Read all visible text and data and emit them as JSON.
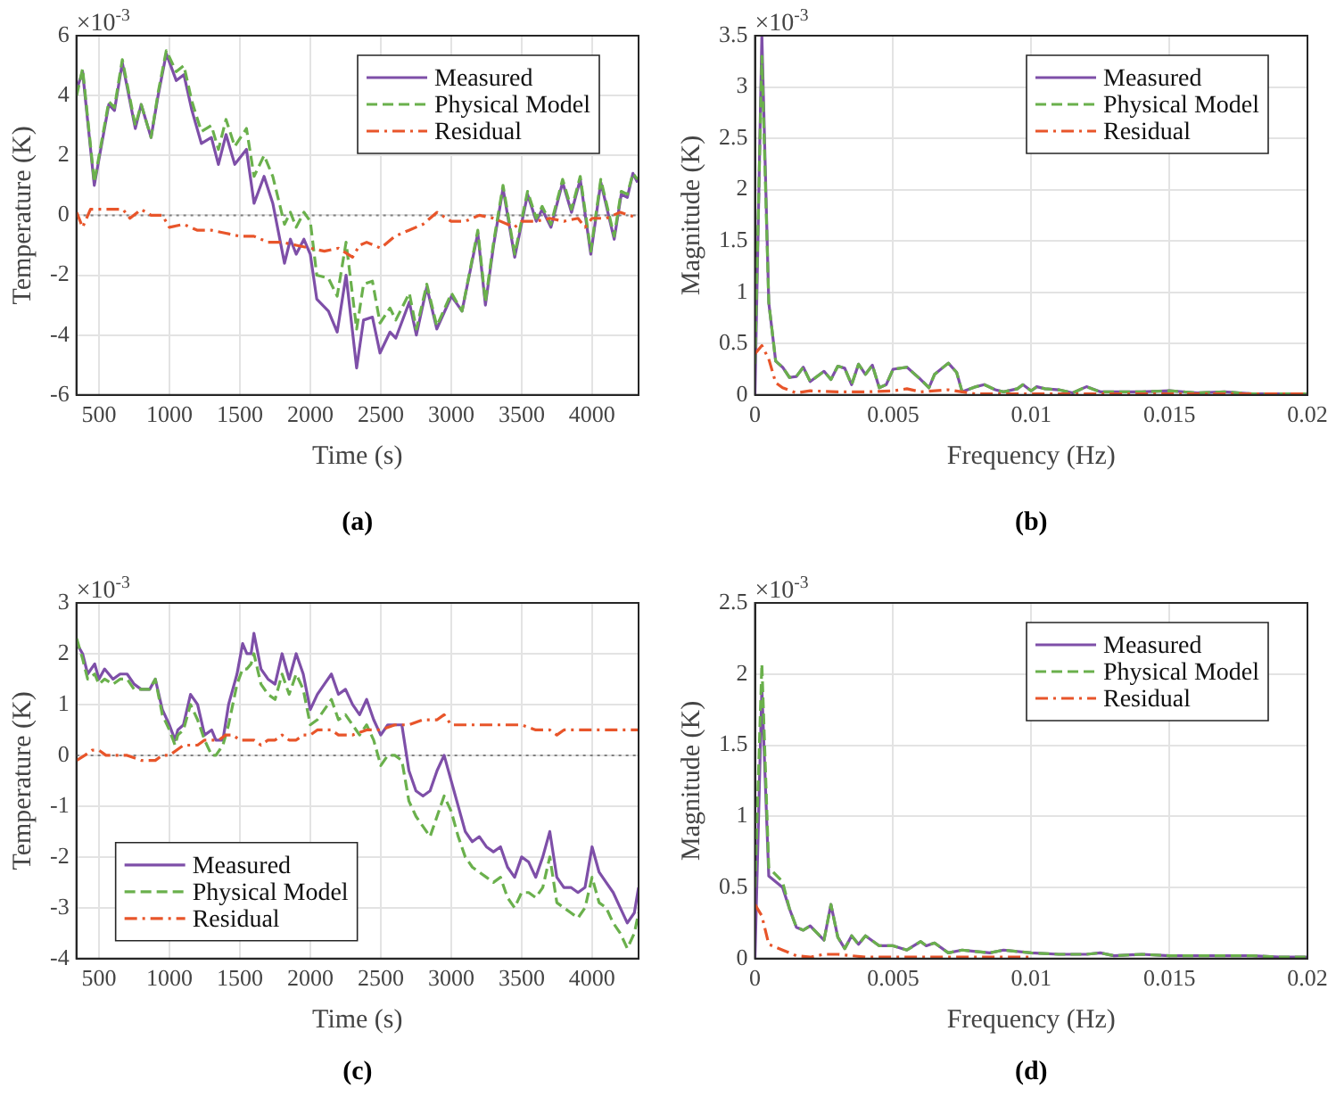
{
  "chart_data": [
    {
      "type": "line",
      "xlabel": "Time (s)",
      "ylabel": "Temperature (K)",
      "annotations": [
        "×10$^{-3}$",
        "(a)"
      ],
      "xlim": [
        340,
        4330
      ],
      "xticks": [
        500,
        1000,
        1500,
        2000,
        2500,
        3000,
        3500,
        4000
      ],
      "ylim": [
        -6,
        6
      ],
      "yticks": [
        -6,
        -4,
        -2,
        0,
        2,
        4,
        6
      ],
      "grid": true,
      "legend": "top right",
      "ref_lines": [
        {
          "axis": "y",
          "value": 0,
          "color": "#808080",
          "line_style": "dotted"
        }
      ],
      "series": [
        {
          "name": "Measured",
          "color": "#7e4fa8",
          "line_style": "solid",
          "x": [
            342,
            384,
            467,
            570,
            610,
            666,
            758,
            800,
            870,
            920,
            978,
            1049,
            1103,
            1160,
            1227,
            1298,
            1348,
            1402,
            1464,
            1547,
            1601,
            1672,
            1734,
            1817,
            1859,
            1900,
            1955,
            2000,
            2046,
            2129,
            2191,
            2254,
            2329,
            2378,
            2441,
            2495,
            2566,
            2607,
            2703,
            2753,
            2827,
            2898,
            3002,
            3077,
            3189,
            3243,
            3301,
            3368,
            3451,
            3542,
            3604,
            3646,
            3708,
            3791,
            3854,
            3916,
            3991,
            4062,
            4157,
            4207,
            4250,
            4290,
            4323
          ],
          "values": [
            4.2,
            4.8,
            1.0,
            3.7,
            3.5,
            5.1,
            2.9,
            3.7,
            2.6,
            4.0,
            5.4,
            4.5,
            4.7,
            3.5,
            2.4,
            2.6,
            1.7,
            2.7,
            1.7,
            2.2,
            0.4,
            1.3,
            0.4,
            -1.6,
            -0.8,
            -1.3,
            -0.8,
            -1.3,
            -2.8,
            -3.2,
            -3.9,
            -2.0,
            -5.1,
            -3.5,
            -3.4,
            -4.6,
            -3.9,
            -4.1,
            -2.9,
            -4.0,
            -2.4,
            -3.8,
            -2.7,
            -3.2,
            -0.6,
            -3.0,
            -1.0,
            0.9,
            -1.4,
            0.7,
            -0.2,
            0.2,
            -0.4,
            1.1,
            0.1,
            1.2,
            -1.3,
            1.1,
            -0.8,
            0.7,
            0.6,
            1.4,
            1.1
          ]
        },
        {
          "name": "Physical Model",
          "color": "#6ab04c",
          "line_style": "dashed",
          "x": [
            342,
            384,
            467,
            570,
            610,
            666,
            758,
            800,
            870,
            920,
            978,
            1049,
            1103,
            1160,
            1227,
            1298,
            1348,
            1402,
            1464,
            1547,
            1601,
            1672,
            1734,
            1817,
            1859,
            1900,
            1955,
            2000,
            2046,
            2129,
            2191,
            2254,
            2329,
            2378,
            2441,
            2495,
            2566,
            2607,
            2703,
            2753,
            2827,
            2898,
            3002,
            3077,
            3189,
            3243,
            3301,
            3368,
            3451,
            3542,
            3604,
            3646,
            3708,
            3791,
            3854,
            3916,
            3991,
            4062,
            4157,
            4207,
            4250,
            4290,
            4323
          ],
          "values": [
            4.0,
            4.9,
            1.1,
            3.8,
            3.6,
            5.2,
            3.0,
            3.7,
            2.6,
            4.1,
            5.5,
            4.8,
            5.0,
            3.8,
            2.8,
            3.0,
            2.2,
            3.2,
            2.3,
            2.9,
            1.3,
            2.0,
            1.3,
            -0.3,
            0.1,
            -0.4,
            0.1,
            -0.2,
            -2.0,
            -2.1,
            -2.7,
            -0.9,
            -3.8,
            -2.3,
            -2.2,
            -3.6,
            -3.1,
            -3.5,
            -2.6,
            -3.8,
            -2.3,
            -3.7,
            -2.6,
            -3.2,
            -0.5,
            -2.9,
            -0.9,
            1.0,
            -1.3,
            0.8,
            -0.1,
            0.3,
            -0.3,
            1.2,
            0.2,
            1.3,
            -1.2,
            1.2,
            -0.7,
            0.8,
            0.7,
            1.4,
            1.2
          ]
        },
        {
          "name": "Residual",
          "color": "#e8552a",
          "line_style": "dashdot",
          "x": [
            342,
            384,
            440,
            500,
            560,
            610,
            670,
            720,
            800,
            870,
            950,
            1000,
            1100,
            1200,
            1300,
            1400,
            1500,
            1600,
            1700,
            1800,
            1900,
            2000,
            2100,
            2200,
            2300,
            2350,
            2400,
            2500,
            2600,
            2700,
            2800,
            2900,
            3000,
            3100,
            3200,
            3300,
            3400,
            3450,
            3500,
            3600,
            3700,
            3800,
            3900,
            3950,
            4000,
            4100,
            4200,
            4330
          ],
          "values": [
            0.1,
            -0.4,
            0.2,
            0.2,
            0.2,
            0.2,
            0.2,
            -0.1,
            0.2,
            0.0,
            0.0,
            -0.4,
            -0.3,
            -0.5,
            -0.5,
            -0.6,
            -0.7,
            -0.7,
            -0.9,
            -0.9,
            -1.0,
            -1.1,
            -1.2,
            -1.1,
            -1.4,
            -1.0,
            -0.9,
            -1.1,
            -0.7,
            -0.5,
            -0.3,
            0.1,
            -0.2,
            -0.2,
            0.0,
            -0.1,
            -0.3,
            -0.4,
            -0.2,
            -0.2,
            -0.1,
            -0.2,
            -0.1,
            -0.4,
            -0.1,
            -0.1,
            0.1,
            -0.1
          ]
        }
      ]
    },
    {
      "type": "line",
      "xlabel": "Frequency (Hz)",
      "ylabel": "Magnitude (K)",
      "annotations": [
        "×10$^{-3}$",
        "(b)"
      ],
      "xlim": [
        0,
        0.02
      ],
      "xticks": [
        0,
        0.005,
        0.01,
        0.015,
        0.02
      ],
      "ylim": [
        0,
        3.5
      ],
      "yticks": [
        0,
        0.5,
        1,
        1.5,
        2,
        2.5,
        3,
        3.5
      ],
      "grid": true,
      "legend": "top right",
      "series": [
        {
          "name": "Measured",
          "color": "#7e4fa8",
          "line_style": "solid",
          "x": [
            0,
            0.00025,
            0.0005,
            0.00075,
            0.001,
            0.00125,
            0.0015,
            0.00175,
            0.002,
            0.0025,
            0.00275,
            0.003,
            0.00325,
            0.0035,
            0.00375,
            0.004,
            0.00425,
            0.0045,
            0.00475,
            0.005,
            0.0055,
            0.006,
            0.0063,
            0.0065,
            0.007,
            0.0073,
            0.0075,
            0.008,
            0.0083,
            0.0087,
            0.009,
            0.0095,
            0.0097,
            0.01,
            0.0102,
            0.0105,
            0.011,
            0.0115,
            0.012,
            0.0125,
            0.013,
            0.014,
            0.015,
            0.016,
            0.017,
            0.018,
            0.019,
            0.02
          ],
          "values": [
            0,
            3.5,
            0.9,
            0.33,
            0.27,
            0.17,
            0.18,
            0.27,
            0.13,
            0.23,
            0.15,
            0.28,
            0.26,
            0.1,
            0.3,
            0.2,
            0.29,
            0.07,
            0.1,
            0.25,
            0.27,
            0.15,
            0.07,
            0.2,
            0.31,
            0.22,
            0.03,
            0.08,
            0.1,
            0.05,
            0.03,
            0.06,
            0.1,
            0.04,
            0.08,
            0.06,
            0.05,
            0.02,
            0.08,
            0.03,
            0.03,
            0.03,
            0.04,
            0.02,
            0.03,
            0.01,
            0.01,
            0.01
          ]
        },
        {
          "name": "Physical Model",
          "color": "#6ab04c",
          "line_style": "dashed",
          "x": [
            0,
            0.00025,
            0.0005,
            0.00075,
            0.001,
            0.00125,
            0.0015,
            0.00175,
            0.002,
            0.0025,
            0.00275,
            0.003,
            0.00325,
            0.0035,
            0.00375,
            0.004,
            0.00425,
            0.0045,
            0.00475,
            0.005,
            0.0055,
            0.006,
            0.0063,
            0.0065,
            0.007,
            0.0073,
            0.0075,
            0.008,
            0.0083,
            0.0087,
            0.009,
            0.0095,
            0.0097,
            0.01,
            0.0102,
            0.0105,
            0.011,
            0.0115,
            0.012,
            0.0125,
            0.013,
            0.014,
            0.015,
            0.016,
            0.017,
            0.018,
            0.019,
            0.02
          ],
          "values": [
            0.3,
            3.3,
            0.9,
            0.33,
            0.27,
            0.17,
            0.18,
            0.27,
            0.13,
            0.23,
            0.15,
            0.28,
            0.26,
            0.1,
            0.3,
            0.2,
            0.29,
            0.07,
            0.1,
            0.25,
            0.27,
            0.15,
            0.07,
            0.2,
            0.31,
            0.22,
            0.03,
            0.08,
            0.1,
            0.05,
            0.03,
            0.06,
            0.1,
            0.04,
            0.08,
            0.06,
            0.05,
            0.02,
            0.08,
            0.03,
            0.03,
            0.03,
            0.04,
            0.02,
            0.03,
            0.01,
            0.01,
            0.01
          ]
        },
        {
          "name": "Residual",
          "color": "#e8552a",
          "line_style": "dashdot",
          "x": [
            0,
            0.00025,
            0.0005,
            0.00075,
            0.001,
            0.0015,
            0.002,
            0.003,
            0.004,
            0.005,
            0.0055,
            0.006,
            0.007,
            0.008,
            0.01,
            0.015,
            0.02
          ],
          "values": [
            0.4,
            0.48,
            0.35,
            0.12,
            0.07,
            0.02,
            0.04,
            0.03,
            0.03,
            0.04,
            0.06,
            0.03,
            0.05,
            0.01,
            0.01,
            0.01,
            0.01
          ]
        }
      ]
    },
    {
      "type": "line",
      "xlabel": "Time (s)",
      "ylabel": "Temperature (K)",
      "annotations": [
        "×10$^{-3}$",
        "(c)"
      ],
      "xlim": [
        340,
        4330
      ],
      "xticks": [
        500,
        1000,
        1500,
        2000,
        2500,
        3000,
        3500,
        4000
      ],
      "ylim": [
        -4,
        3
      ],
      "yticks": [
        -4,
        -3,
        -2,
        -1,
        0,
        1,
        2,
        3
      ],
      "grid": true,
      "legend": "bottom left",
      "ref_lines": [
        {
          "axis": "y",
          "value": 0,
          "color": "#808080",
          "line_style": "dotted"
        }
      ],
      "series": [
        {
          "name": "Measured",
          "color": "#7e4fa8",
          "line_style": "solid",
          "x": [
            342,
            384,
            420,
            470,
            500,
            540,
            600,
            650,
            700,
            750,
            800,
            860,
            900,
            950,
            1000,
            1040,
            1060,
            1100,
            1150,
            1200,
            1250,
            1300,
            1330,
            1380,
            1420,
            1480,
            1520,
            1550,
            1580,
            1600,
            1650,
            1700,
            1750,
            1800,
            1850,
            1900,
            1950,
            2000,
            2050,
            2100,
            2150,
            2200,
            2250,
            2300,
            2350,
            2400,
            2450,
            2500,
            2550,
            2600,
            2650,
            2700,
            2750,
            2800,
            2850,
            2900,
            2950,
            3000,
            3050,
            3100,
            3150,
            3200,
            3250,
            3300,
            3350,
            3400,
            3450,
            3500,
            3550,
            3600,
            3650,
            3700,
            3750,
            3800,
            3850,
            3900,
            3950,
            4000,
            4050,
            4100,
            4150,
            4200,
            4250,
            4300,
            4330
          ],
          "values": [
            2.2,
            2.0,
            1.6,
            1.8,
            1.5,
            1.7,
            1.5,
            1.6,
            1.6,
            1.4,
            1.3,
            1.3,
            1.5,
            0.9,
            0.6,
            0.3,
            0.5,
            0.6,
            1.2,
            1.0,
            0.4,
            0.5,
            0.3,
            0.3,
            1.0,
            1.6,
            2.2,
            2.0,
            2.0,
            2.4,
            1.7,
            1.5,
            1.4,
            2.0,
            1.5,
            2.0,
            1.6,
            0.9,
            1.2,
            1.4,
            1.6,
            1.2,
            1.3,
            1.0,
            0.8,
            1.1,
            0.7,
            0.4,
            0.6,
            0.6,
            0.6,
            -0.3,
            -0.7,
            -0.8,
            -0.7,
            -0.3,
            0.0,
            -0.5,
            -1.0,
            -1.5,
            -1.7,
            -1.6,
            -1.8,
            -1.9,
            -1.8,
            -2.2,
            -2.4,
            -2.0,
            -2.1,
            -2.4,
            -2.0,
            -1.5,
            -2.4,
            -2.6,
            -2.6,
            -2.7,
            -2.6,
            -1.8,
            -2.3,
            -2.5,
            -2.7,
            -3.0,
            -3.3,
            -3.1,
            -2.6
          ]
        },
        {
          "name": "Physical Model",
          "color": "#6ab04c",
          "line_style": "dashed",
          "x": [
            342,
            384,
            420,
            470,
            500,
            540,
            600,
            650,
            700,
            750,
            800,
            860,
            900,
            950,
            1000,
            1040,
            1060,
            1100,
            1150,
            1200,
            1250,
            1300,
            1330,
            1380,
            1420,
            1480,
            1520,
            1550,
            1580,
            1600,
            1650,
            1700,
            1750,
            1800,
            1850,
            1900,
            1950,
            2000,
            2050,
            2100,
            2150,
            2200,
            2250,
            2300,
            2350,
            2400,
            2450,
            2500,
            2550,
            2600,
            2650,
            2700,
            2750,
            2800,
            2850,
            2900,
            2950,
            3000,
            3050,
            3100,
            3150,
            3200,
            3250,
            3300,
            3350,
            3400,
            3450,
            3500,
            3550,
            3600,
            3650,
            3700,
            3750,
            3800,
            3850,
            3900,
            3950,
            4000,
            4050,
            4100,
            4150,
            4200,
            4250,
            4300,
            4330
          ],
          "values": [
            2.3,
            1.9,
            1.5,
            1.6,
            1.4,
            1.5,
            1.4,
            1.5,
            1.5,
            1.3,
            1.3,
            1.3,
            1.5,
            0.8,
            0.5,
            0.2,
            0.4,
            0.5,
            1.0,
            0.7,
            0.3,
            0.0,
            0.0,
            0.2,
            0.6,
            1.4,
            1.7,
            1.7,
            1.8,
            2.0,
            1.4,
            1.2,
            1.1,
            1.6,
            1.2,
            1.6,
            1.3,
            0.6,
            0.7,
            0.9,
            1.1,
            0.7,
            0.8,
            0.6,
            0.4,
            0.6,
            0.3,
            -0.2,
            0.0,
            0.0,
            -0.1,
            -0.9,
            -1.2,
            -1.4,
            -1.6,
            -1.2,
            -0.8,
            -1.1,
            -1.6,
            -2.0,
            -2.2,
            -2.3,
            -2.4,
            -2.5,
            -2.4,
            -2.8,
            -3.0,
            -2.7,
            -2.7,
            -2.8,
            -2.6,
            -2.0,
            -2.9,
            -3.0,
            -3.1,
            -3.2,
            -3.0,
            -2.4,
            -2.9,
            -3.0,
            -3.3,
            -3.5,
            -3.8,
            -3.5,
            -3.1
          ]
        },
        {
          "name": "Residual",
          "color": "#e8552a",
          "line_style": "dashdot",
          "x": [
            342,
            400,
            450,
            500,
            550,
            600,
            700,
            800,
            850,
            900,
            950,
            1000,
            1050,
            1100,
            1150,
            1200,
            1250,
            1300,
            1350,
            1400,
            1450,
            1500,
            1550,
            1600,
            1650,
            1700,
            1750,
            1800,
            1850,
            1900,
            1950,
            2000,
            2050,
            2100,
            2150,
            2200,
            2300,
            2400,
            2500,
            2600,
            2700,
            2800,
            2900,
            2950,
            3000,
            3100,
            3200,
            3300,
            3400,
            3500,
            3600,
            3700,
            3750,
            3800,
            3900,
            4000,
            4050,
            4100,
            4200,
            4330
          ],
          "values": [
            -0.1,
            0.0,
            0.1,
            0.1,
            0.0,
            0.0,
            0.0,
            -0.1,
            -0.1,
            -0.1,
            0.0,
            0.0,
            0.1,
            0.2,
            0.2,
            0.2,
            0.3,
            0.3,
            0.3,
            0.4,
            0.4,
            0.3,
            0.3,
            0.3,
            0.2,
            0.3,
            0.3,
            0.4,
            0.3,
            0.3,
            0.4,
            0.4,
            0.5,
            0.5,
            0.5,
            0.4,
            0.4,
            0.5,
            0.5,
            0.6,
            0.6,
            0.7,
            0.7,
            0.8,
            0.6,
            0.6,
            0.6,
            0.6,
            0.6,
            0.6,
            0.5,
            0.5,
            0.4,
            0.5,
            0.5,
            0.5,
            0.5,
            0.5,
            0.5,
            0.5
          ]
        }
      ]
    },
    {
      "type": "line",
      "xlabel": "Frequency (Hz)",
      "ylabel": "Magnitude (K)",
      "annotations": [
        "×10$^{-3}$",
        "(d)"
      ],
      "xlim": [
        0,
        0.02
      ],
      "xticks": [
        0,
        0.005,
        0.01,
        0.015,
        0.02
      ],
      "ylim": [
        0,
        2.5
      ],
      "yticks": [
        0,
        0.5,
        1,
        1.5,
        2,
        2.5
      ],
      "grid": true,
      "legend": "top right",
      "series": [
        {
          "name": "Measured",
          "color": "#7e4fa8",
          "line_style": "solid",
          "x": [
            0,
            0.00025,
            0.0005,
            0.001,
            0.00125,
            0.0015,
            0.00175,
            0.002,
            0.0025,
            0.00275,
            0.003,
            0.00325,
            0.0035,
            0.00375,
            0.004,
            0.0045,
            0.005,
            0.0055,
            0.006,
            0.0062,
            0.0065,
            0.007,
            0.0075,
            0.008,
            0.0085,
            0.009,
            0.01,
            0.011,
            0.012,
            0.0125,
            0.013,
            0.014,
            0.015,
            0.016,
            0.017,
            0.018,
            0.019,
            0.02
          ],
          "values": [
            0,
            1.9,
            0.58,
            0.5,
            0.35,
            0.22,
            0.2,
            0.23,
            0.13,
            0.38,
            0.15,
            0.07,
            0.16,
            0.1,
            0.16,
            0.09,
            0.09,
            0.06,
            0.12,
            0.09,
            0.11,
            0.04,
            0.06,
            0.05,
            0.04,
            0.06,
            0.04,
            0.03,
            0.03,
            0.04,
            0.02,
            0.03,
            0.02,
            0.02,
            0.02,
            0.02,
            0.01,
            0.01
          ]
        },
        {
          "name": "Physical Model",
          "color": "#6ab04c",
          "line_style": "dashed",
          "x": [
            0,
            0.00025,
            0.0005,
            0.001,
            0.00125,
            0.0015,
            0.00175,
            0.002,
            0.0025,
            0.00275,
            0.003,
            0.00325,
            0.0035,
            0.00375,
            0.004,
            0.0045,
            0.005,
            0.0055,
            0.006,
            0.0062,
            0.0065,
            0.007,
            0.0075,
            0.008,
            0.0085,
            0.009,
            0.01,
            0.011,
            0.012,
            0.0125,
            0.013,
            0.014,
            0.015,
            0.016,
            0.017,
            0.018,
            0.019,
            0.02
          ],
          "values": [
            0.5,
            2.07,
            0.64,
            0.54,
            0.35,
            0.22,
            0.2,
            0.23,
            0.13,
            0.38,
            0.15,
            0.07,
            0.16,
            0.1,
            0.16,
            0.09,
            0.09,
            0.06,
            0.12,
            0.09,
            0.11,
            0.04,
            0.06,
            0.05,
            0.04,
            0.06,
            0.04,
            0.03,
            0.03,
            0.04,
            0.02,
            0.03,
            0.02,
            0.02,
            0.02,
            0.02,
            0.01,
            0.01
          ]
        },
        {
          "name": "Residual",
          "color": "#e8552a",
          "line_style": "dashdot",
          "x": [
            0,
            0.00025,
            0.0005,
            0.001,
            0.0015,
            0.002,
            0.0025,
            0.003,
            0.0035,
            0.004,
            0.005,
            0.01
          ],
          "values": [
            0.38,
            0.3,
            0.1,
            0.06,
            0.02,
            0.01,
            0.03,
            0.03,
            0.02,
            0.01,
            0.01,
            0.01
          ]
        }
      ]
    }
  ]
}
